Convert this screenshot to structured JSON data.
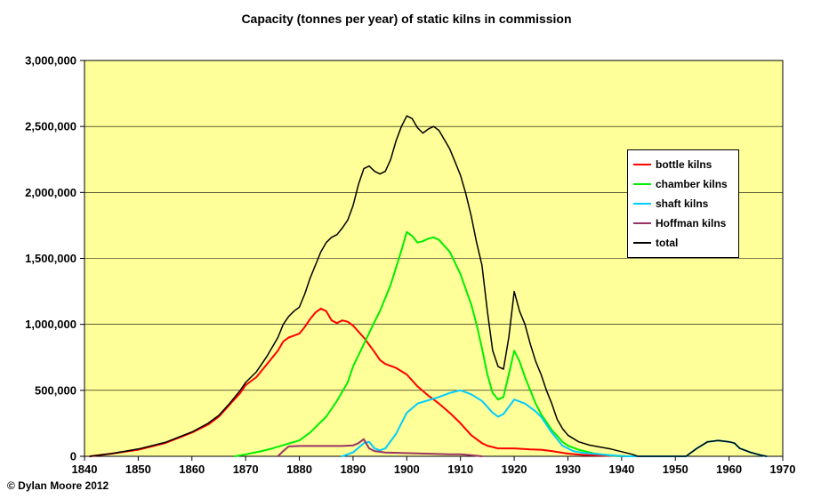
{
  "copyright": "© Dylan Moore 2012",
  "chart_data": {
    "type": "line",
    "title": "Capacity (tonnes per year) of static kilns in commission",
    "xlabel": "",
    "ylabel": "",
    "xlim": [
      1840,
      1970
    ],
    "ylim": [
      0,
      3000000
    ],
    "x_tick_step": 10,
    "y_tick_step": 500000,
    "grid": true,
    "plot_bg": "#FFFF99",
    "outer_bg": "#FFFFFF",
    "legend_position": "inside-right",
    "series": [
      {
        "name": "bottle kilns",
        "color": "#FF0000",
        "width": 2,
        "points": [
          [
            1841,
            0
          ],
          [
            1845,
            20000
          ],
          [
            1850,
            50000
          ],
          [
            1855,
            100000
          ],
          [
            1860,
            180000
          ],
          [
            1863,
            240000
          ],
          [
            1865,
            300000
          ],
          [
            1867,
            390000
          ],
          [
            1869,
            480000
          ],
          [
            1870,
            540000
          ],
          [
            1872,
            600000
          ],
          [
            1874,
            700000
          ],
          [
            1876,
            800000
          ],
          [
            1877,
            870000
          ],
          [
            1878,
            900000
          ],
          [
            1879,
            915000
          ],
          [
            1880,
            930000
          ],
          [
            1881,
            980000
          ],
          [
            1882,
            1040000
          ],
          [
            1883,
            1090000
          ],
          [
            1884,
            1120000
          ],
          [
            1885,
            1100000
          ],
          [
            1886,
            1030000
          ],
          [
            1887,
            1010000
          ],
          [
            1888,
            1030000
          ],
          [
            1889,
            1020000
          ],
          [
            1890,
            990000
          ],
          [
            1892,
            900000
          ],
          [
            1894,
            790000
          ],
          [
            1895,
            730000
          ],
          [
            1896,
            700000
          ],
          [
            1898,
            670000
          ],
          [
            1900,
            620000
          ],
          [
            1902,
            530000
          ],
          [
            1904,
            460000
          ],
          [
            1905,
            430000
          ],
          [
            1906,
            400000
          ],
          [
            1908,
            330000
          ],
          [
            1910,
            250000
          ],
          [
            1912,
            160000
          ],
          [
            1914,
            100000
          ],
          [
            1915,
            80000
          ],
          [
            1917,
            60000
          ],
          [
            1920,
            60000
          ],
          [
            1923,
            52000
          ],
          [
            1925,
            50000
          ],
          [
            1927,
            40000
          ],
          [
            1930,
            20000
          ],
          [
            1933,
            10000
          ],
          [
            1936,
            6000
          ],
          [
            1939,
            3000
          ],
          [
            1941,
            0
          ]
        ]
      },
      {
        "name": "chamber kilns",
        "color": "#00EE00",
        "width": 2,
        "points": [
          [
            1868,
            0
          ],
          [
            1870,
            15000
          ],
          [
            1873,
            40000
          ],
          [
            1875,
            60000
          ],
          [
            1877,
            85000
          ],
          [
            1880,
            120000
          ],
          [
            1882,
            180000
          ],
          [
            1884,
            260000
          ],
          [
            1885,
            300000
          ],
          [
            1887,
            420000
          ],
          [
            1889,
            560000
          ],
          [
            1890,
            680000
          ],
          [
            1892,
            850000
          ],
          [
            1894,
            1020000
          ],
          [
            1895,
            1100000
          ],
          [
            1897,
            1300000
          ],
          [
            1899,
            1560000
          ],
          [
            1900,
            1700000
          ],
          [
            1901,
            1670000
          ],
          [
            1902,
            1620000
          ],
          [
            1903,
            1630000
          ],
          [
            1904,
            1650000
          ],
          [
            1905,
            1660000
          ],
          [
            1906,
            1640000
          ],
          [
            1908,
            1550000
          ],
          [
            1910,
            1380000
          ],
          [
            1912,
            1150000
          ],
          [
            1913,
            1000000
          ],
          [
            1914,
            820000
          ],
          [
            1915,
            620000
          ],
          [
            1916,
            480000
          ],
          [
            1917,
            430000
          ],
          [
            1918,
            450000
          ],
          [
            1919,
            620000
          ],
          [
            1920,
            800000
          ],
          [
            1921,
            720000
          ],
          [
            1922,
            600000
          ],
          [
            1924,
            400000
          ],
          [
            1925,
            320000
          ],
          [
            1927,
            200000
          ],
          [
            1929,
            110000
          ],
          [
            1930,
            80000
          ],
          [
            1932,
            50000
          ],
          [
            1935,
            20000
          ],
          [
            1938,
            6000
          ],
          [
            1940,
            0
          ]
        ]
      },
      {
        "name": "shaft kilns",
        "color": "#00CCFF",
        "width": 2,
        "points": [
          [
            1888,
            0
          ],
          [
            1890,
            30000
          ],
          [
            1892,
            100000
          ],
          [
            1893,
            110000
          ],
          [
            1894,
            60000
          ],
          [
            1895,
            45000
          ],
          [
            1896,
            60000
          ],
          [
            1898,
            170000
          ],
          [
            1900,
            330000
          ],
          [
            1902,
            400000
          ],
          [
            1904,
            425000
          ],
          [
            1906,
            450000
          ],
          [
            1908,
            480000
          ],
          [
            1910,
            500000
          ],
          [
            1912,
            470000
          ],
          [
            1914,
            420000
          ],
          [
            1916,
            330000
          ],
          [
            1917,
            300000
          ],
          [
            1918,
            320000
          ],
          [
            1920,
            430000
          ],
          [
            1922,
            400000
          ],
          [
            1924,
            340000
          ],
          [
            1925,
            300000
          ],
          [
            1927,
            180000
          ],
          [
            1929,
            80000
          ],
          [
            1931,
            40000
          ],
          [
            1933,
            25000
          ],
          [
            1936,
            15000
          ],
          [
            1939,
            5000
          ],
          [
            1941,
            0
          ],
          [
            1952,
            0
          ],
          [
            1954,
            60000
          ],
          [
            1956,
            110000
          ],
          [
            1958,
            120000
          ],
          [
            1960,
            110000
          ],
          [
            1961,
            100000
          ],
          [
            1962,
            60000
          ],
          [
            1964,
            30000
          ],
          [
            1966,
            8000
          ],
          [
            1967,
            0
          ]
        ]
      },
      {
        "name": "Hoffman kilns",
        "color": "#993366",
        "width": 2,
        "points": [
          [
            1876,
            0
          ],
          [
            1877,
            40000
          ],
          [
            1878,
            75000
          ],
          [
            1880,
            78000
          ],
          [
            1884,
            78000
          ],
          [
            1888,
            78000
          ],
          [
            1890,
            82000
          ],
          [
            1891,
            100000
          ],
          [
            1892,
            130000
          ],
          [
            1893,
            60000
          ],
          [
            1894,
            40000
          ],
          [
            1896,
            28000
          ],
          [
            1899,
            25000
          ],
          [
            1902,
            22000
          ],
          [
            1905,
            18000
          ],
          [
            1908,
            15000
          ],
          [
            1910,
            15000
          ],
          [
            1912,
            8000
          ],
          [
            1914,
            0
          ]
        ]
      },
      {
        "name": "total",
        "color": "#000000",
        "width": 1.5,
        "points": [
          [
            1841,
            0
          ],
          [
            1845,
            20000
          ],
          [
            1850,
            55000
          ],
          [
            1855,
            105000
          ],
          [
            1860,
            185000
          ],
          [
            1863,
            250000
          ],
          [
            1865,
            310000
          ],
          [
            1867,
            400000
          ],
          [
            1869,
            500000
          ],
          [
            1870,
            560000
          ],
          [
            1872,
            640000
          ],
          [
            1874,
            760000
          ],
          [
            1876,
            900000
          ],
          [
            1877,
            1000000
          ],
          [
            1878,
            1060000
          ],
          [
            1879,
            1100000
          ],
          [
            1880,
            1130000
          ],
          [
            1881,
            1230000
          ],
          [
            1882,
            1350000
          ],
          [
            1883,
            1450000
          ],
          [
            1884,
            1550000
          ],
          [
            1885,
            1620000
          ],
          [
            1886,
            1660000
          ],
          [
            1887,
            1680000
          ],
          [
            1888,
            1730000
          ],
          [
            1889,
            1790000
          ],
          [
            1890,
            1900000
          ],
          [
            1891,
            2060000
          ],
          [
            1892,
            2180000
          ],
          [
            1893,
            2200000
          ],
          [
            1894,
            2160000
          ],
          [
            1895,
            2140000
          ],
          [
            1896,
            2160000
          ],
          [
            1897,
            2250000
          ],
          [
            1898,
            2390000
          ],
          [
            1899,
            2500000
          ],
          [
            1900,
            2580000
          ],
          [
            1901,
            2560000
          ],
          [
            1902,
            2490000
          ],
          [
            1903,
            2450000
          ],
          [
            1904,
            2480000
          ],
          [
            1905,
            2500000
          ],
          [
            1906,
            2470000
          ],
          [
            1907,
            2400000
          ],
          [
            1908,
            2330000
          ],
          [
            1909,
            2230000
          ],
          [
            1910,
            2130000
          ],
          [
            1911,
            1990000
          ],
          [
            1912,
            1820000
          ],
          [
            1913,
            1620000
          ],
          [
            1914,
            1450000
          ],
          [
            1915,
            1100000
          ],
          [
            1916,
            800000
          ],
          [
            1917,
            680000
          ],
          [
            1918,
            660000
          ],
          [
            1919,
            900000
          ],
          [
            1920,
            1250000
          ],
          [
            1921,
            1100000
          ],
          [
            1922,
            1000000
          ],
          [
            1923,
            850000
          ],
          [
            1924,
            720000
          ],
          [
            1925,
            620000
          ],
          [
            1926,
            500000
          ],
          [
            1927,
            400000
          ],
          [
            1928,
            280000
          ],
          [
            1929,
            210000
          ],
          [
            1930,
            160000
          ],
          [
            1932,
            110000
          ],
          [
            1934,
            85000
          ],
          [
            1936,
            70000
          ],
          [
            1938,
            55000
          ],
          [
            1940,
            35000
          ],
          [
            1942,
            15000
          ],
          [
            1943,
            0
          ],
          [
            1952,
            0
          ],
          [
            1954,
            60000
          ],
          [
            1956,
            110000
          ],
          [
            1958,
            120000
          ],
          [
            1960,
            110000
          ],
          [
            1961,
            100000
          ],
          [
            1962,
            60000
          ],
          [
            1964,
            30000
          ],
          [
            1966,
            8000
          ],
          [
            1967,
            0
          ]
        ]
      }
    ]
  }
}
